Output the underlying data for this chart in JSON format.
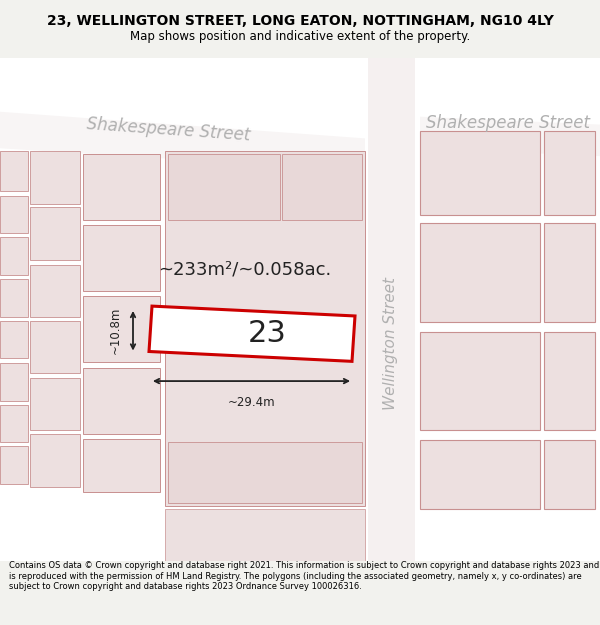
{
  "title": "23, WELLINGTON STREET, LONG EATON, NOTTINGHAM, NG10 4LY",
  "subtitle": "Map shows position and indicative extent of the property.",
  "bg_color": "#f2f2ee",
  "map_bg": "#ffffff",
  "building_fill": "#eddede",
  "building_edge": "#d09898",
  "highlight_color": "#cc0000",
  "highlight_fill": "#ffffff",
  "dim_color": "#222222",
  "street_label_color": "#b0b0b0",
  "area_label": "~233m²/~0.058ac.",
  "property_label": "23",
  "dim_width": "~29.4m",
  "dim_height": "~10.8m",
  "footer_text": "Contains OS data © Crown copyright and database right 2021. This information is subject to Crown copyright and database rights 2023 and is reproduced with the permission of HM Land Registry. The polygons (including the associated geometry, namely x, y co-ordinates) are subject to Crown copyright and database rights 2023 Ordnance Survey 100026316.",
  "figsize": [
    6.0,
    6.25
  ],
  "dpi": 100
}
